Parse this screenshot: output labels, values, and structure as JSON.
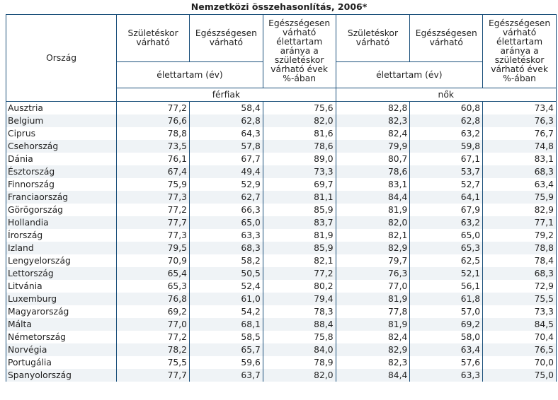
{
  "title": "Nemzetközi összehasonlítás, 2006*",
  "headers": {
    "country": "Ország",
    "born": "Születéskor várható",
    "healthy": "Egészségesen várható",
    "ratio": "Egészségesen várható élettartam aránya a születéskor várható évek %-ában",
    "unit": "élettartam (év)",
    "men": "férfiak",
    "women": "nők"
  },
  "rows": [
    {
      "country": "Ausztria",
      "m_birth": "77,2",
      "m_healthy": "58,4",
      "m_ratio": "75,6",
      "f_birth": "82,8",
      "f_healthy": "60,8",
      "f_ratio": "73,4"
    },
    {
      "country": "Belgium",
      "m_birth": "76,6",
      "m_healthy": "62,8",
      "m_ratio": "82,0",
      "f_birth": "82,3",
      "f_healthy": "62,8",
      "f_ratio": "76,3"
    },
    {
      "country": "Ciprus",
      "m_birth": "78,8",
      "m_healthy": "64,3",
      "m_ratio": "81,6",
      "f_birth": "82,4",
      "f_healthy": "63,2",
      "f_ratio": "76,7"
    },
    {
      "country": "Csehország",
      "m_birth": "73,5",
      "m_healthy": "57,8",
      "m_ratio": "78,6",
      "f_birth": "79,9",
      "f_healthy": "59,8",
      "f_ratio": "74,8"
    },
    {
      "country": "Dánia",
      "m_birth": "76,1",
      "m_healthy": "67,7",
      "m_ratio": "89,0",
      "f_birth": "80,7",
      "f_healthy": "67,1",
      "f_ratio": "83,1"
    },
    {
      "country": "Észtország",
      "m_birth": "67,4",
      "m_healthy": "49,4",
      "m_ratio": "73,3",
      "f_birth": "78,6",
      "f_healthy": "53,7",
      "f_ratio": "68,3"
    },
    {
      "country": "Finnország",
      "m_birth": "75,9",
      "m_healthy": "52,9",
      "m_ratio": "69,7",
      "f_birth": "83,1",
      "f_healthy": "52,7",
      "f_ratio": "63,4"
    },
    {
      "country": "Franciaország",
      "m_birth": "77,3",
      "m_healthy": "62,7",
      "m_ratio": "81,1",
      "f_birth": "84,4",
      "f_healthy": "64,1",
      "f_ratio": "75,9"
    },
    {
      "country": "Görögország",
      "m_birth": "77,2",
      "m_healthy": "66,3",
      "m_ratio": "85,9",
      "f_birth": "81,9",
      "f_healthy": "67,9",
      "f_ratio": "82,9"
    },
    {
      "country": "Hollandia",
      "m_birth": "77,7",
      "m_healthy": "65,0",
      "m_ratio": "83,7",
      "f_birth": "82,0",
      "f_healthy": "63,2",
      "f_ratio": "77,1"
    },
    {
      "country": "Írország",
      "m_birth": "77,3",
      "m_healthy": "63,3",
      "m_ratio": "81,9",
      "f_birth": "82,1",
      "f_healthy": "65,0",
      "f_ratio": "79,2"
    },
    {
      "country": "Izland",
      "m_birth": "79,5",
      "m_healthy": "68,3",
      "m_ratio": "85,9",
      "f_birth": "82,9",
      "f_healthy": "65,3",
      "f_ratio": "78,8"
    },
    {
      "country": "Lengyelország",
      "m_birth": "70,9",
      "m_healthy": "58,2",
      "m_ratio": "82,1",
      "f_birth": "79,7",
      "f_healthy": "62,5",
      "f_ratio": "78,4"
    },
    {
      "country": "Lettország",
      "m_birth": "65,4",
      "m_healthy": "50,5",
      "m_ratio": "77,2",
      "f_birth": "76,3",
      "f_healthy": "52,1",
      "f_ratio": "68,3"
    },
    {
      "country": "Litvánia",
      "m_birth": "65,3",
      "m_healthy": "52,4",
      "m_ratio": "80,2",
      "f_birth": "77,0",
      "f_healthy": "56,1",
      "f_ratio": "72,9"
    },
    {
      "country": "Luxemburg",
      "m_birth": "76,8",
      "m_healthy": "61,0",
      "m_ratio": "79,4",
      "f_birth": "81,9",
      "f_healthy": "61,8",
      "f_ratio": "75,5"
    },
    {
      "country": "Magyarország",
      "m_birth": "69,2",
      "m_healthy": "54,2",
      "m_ratio": "78,3",
      "f_birth": "77,8",
      "f_healthy": "57,0",
      "f_ratio": "73,3"
    },
    {
      "country": "Málta",
      "m_birth": "77,0",
      "m_healthy": "68,1",
      "m_ratio": "88,4",
      "f_birth": "81,9",
      "f_healthy": "69,2",
      "f_ratio": "84,5"
    },
    {
      "country": "Németország",
      "m_birth": "77,2",
      "m_healthy": "58,5",
      "m_ratio": "75,8",
      "f_birth": "82,4",
      "f_healthy": "58,0",
      "f_ratio": "70,4"
    },
    {
      "country": "Norvégia",
      "m_birth": "78,2",
      "m_healthy": "65,7",
      "m_ratio": "84,0",
      "f_birth": "82,9",
      "f_healthy": "63,4",
      "f_ratio": "76,5"
    },
    {
      "country": "Portugália",
      "m_birth": "75,5",
      "m_healthy": "59,6",
      "m_ratio": "78,9",
      "f_birth": "82,3",
      "f_healthy": "57,6",
      "f_ratio": "70,0"
    },
    {
      "country": "Spanyolország",
      "m_birth": "77,7",
      "m_healthy": "63,7",
      "m_ratio": "82,0",
      "f_birth": "84,4",
      "f_healthy": "63,3",
      "f_ratio": "75,0"
    }
  ]
}
